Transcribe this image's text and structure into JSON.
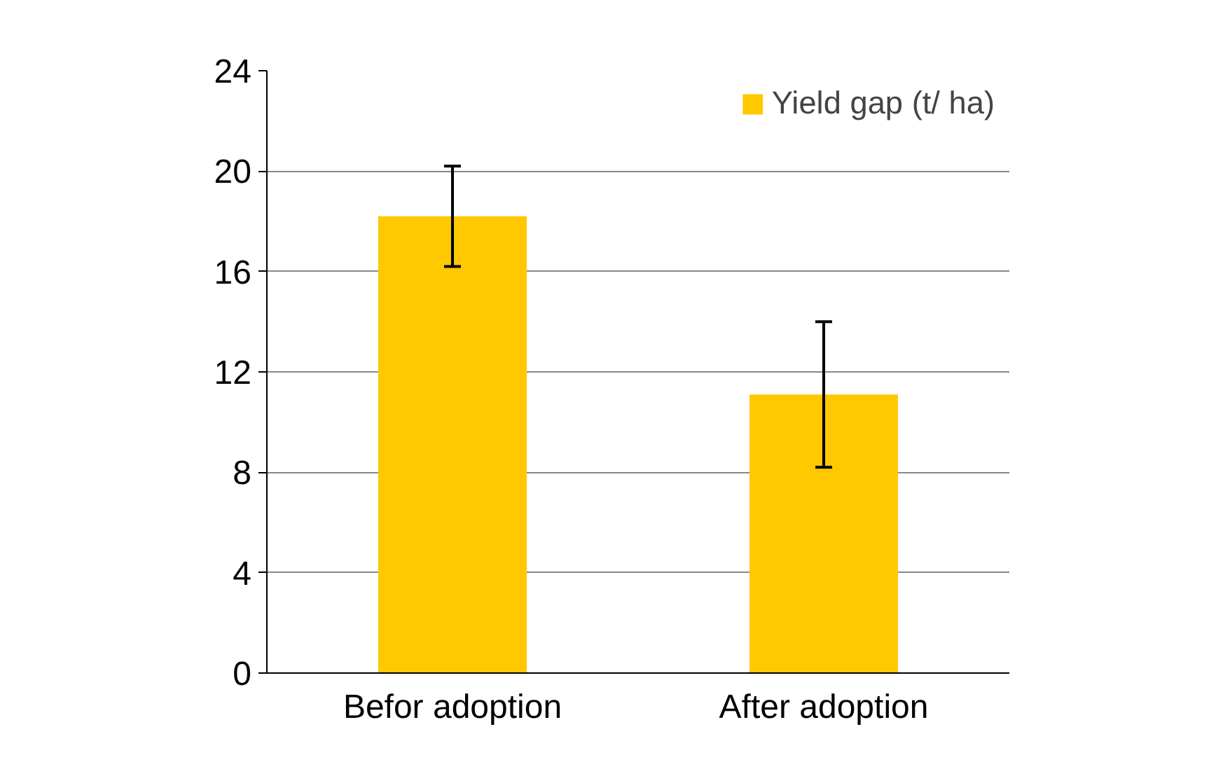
{
  "chart_data": {
    "type": "bar",
    "categories": [
      "Befor adoption",
      "After adoption"
    ],
    "series": [
      {
        "name": "Yield gap (t/ ha)",
        "color": "#ffc800",
        "values": [
          18.2,
          11.1
        ],
        "errors": [
          2,
          2.9
        ]
      }
    ],
    "ylim": [
      0,
      24
    ],
    "yticks": [
      0,
      4,
      8,
      12,
      16,
      20,
      24
    ],
    "grid": "y",
    "legend": "top right"
  }
}
